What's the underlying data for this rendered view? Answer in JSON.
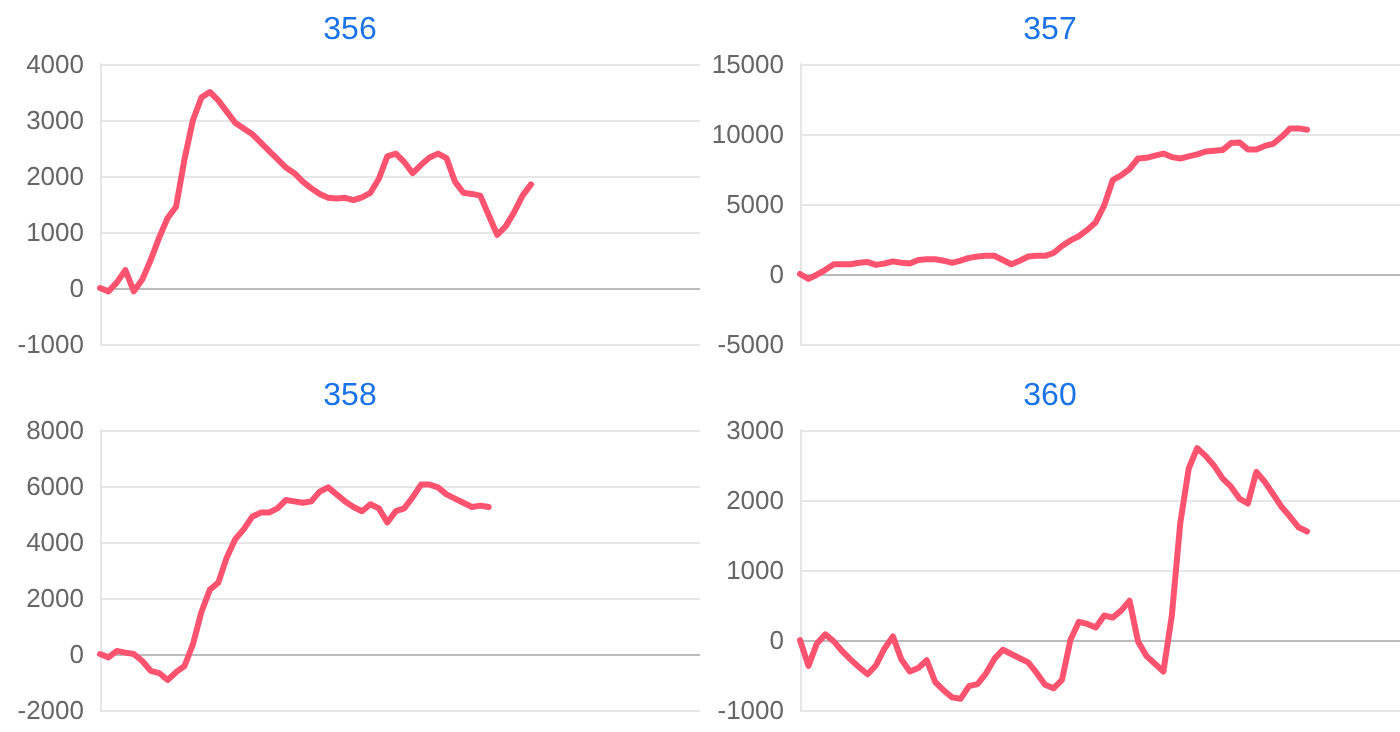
{
  "chart_data": [
    {
      "type": "line",
      "title": "356",
      "categories": [
        null,
        null,
        null,
        null,
        null,
        null,
        null,
        null,
        null,
        null,
        null,
        null,
        null,
        null,
        null,
        null,
        null,
        null,
        null,
        null,
        null,
        null,
        null,
        null,
        null,
        null,
        null,
        null,
        null,
        null,
        null,
        null,
        null,
        null,
        null,
        null,
        null,
        null,
        null,
        null,
        null,
        null,
        null,
        null,
        null,
        null,
        null,
        null,
        null,
        null,
        null,
        null,
        null,
        null,
        null,
        null,
        null,
        null,
        null,
        null,
        null,
        null,
        null,
        null,
        null,
        null,
        null,
        null,
        null,
        null,
        null,
        null
      ],
      "values": [
        0,
        -60,
        100,
        320,
        -60,
        150,
        500,
        900,
        1250,
        1450,
        2300,
        3000,
        3400,
        3500,
        3350,
        3150,
        2950,
        2850,
        2750,
        2600,
        2450,
        2300,
        2150,
        2050,
        1900,
        1780,
        1680,
        1610,
        1600,
        1610,
        1570,
        1620,
        1700,
        1950,
        2350,
        2400,
        2250,
        2050,
        2200,
        2330,
        2400,
        2320,
        1900,
        1700,
        1680,
        1650,
        1300,
        950,
        1100,
        1350,
        1650,
        1850,
        null,
        null,
        null,
        null,
        null,
        null,
        null,
        null,
        null,
        null,
        null,
        null,
        null,
        null,
        null,
        null,
        null,
        null,
        null,
        null
      ],
      "color": "#ff5370",
      "ylim": [
        -1000,
        4000
      ],
      "yticks": [
        -1000,
        0,
        1000,
        2000,
        3000,
        4000
      ],
      "grid": "y",
      "tick_labels": "y"
    },
    {
      "type": "line",
      "title": "357",
      "categories": [
        null,
        null,
        null,
        null,
        null,
        null,
        null,
        null,
        null,
        null,
        null,
        null,
        null,
        null,
        null,
        null,
        null,
        null,
        null,
        null,
        null,
        null,
        null,
        null,
        null,
        null,
        null,
        null,
        null,
        null,
        null,
        null,
        null,
        null,
        null,
        null,
        null,
        null,
        null,
        null,
        null,
        null,
        null,
        null,
        null,
        null,
        null,
        null,
        null,
        null,
        null,
        null,
        null,
        null,
        null,
        null,
        null,
        null,
        null,
        null,
        null,
        null,
        null,
        null,
        null,
        null,
        null,
        null,
        null,
        null,
        null,
        null
      ],
      "values": [
        0,
        -350,
        -50,
        300,
        700,
        700,
        700,
        800,
        850,
        650,
        750,
        900,
        800,
        750,
        1000,
        1050,
        1050,
        950,
        800,
        950,
        1150,
        1250,
        1300,
        1300,
        1000,
        700,
        950,
        1250,
        1300,
        1300,
        1500,
        2000,
        2400,
        2700,
        3150,
        3700,
        4900,
        6700,
        7050,
        7500,
        8250,
        8300,
        8450,
        8600,
        8350,
        8250,
        8400,
        8550,
        8750,
        8800,
        8850,
        9350,
        9400,
        8900,
        8900,
        9150,
        9300,
        9800,
        10400,
        10400,
        10300,
        null,
        null,
        null,
        null,
        null,
        null,
        null,
        null,
        null,
        null,
        null
      ],
      "color": "#ff5370",
      "ylim": [
        -5000,
        15000
      ],
      "yticks": [
        -5000,
        0,
        5000,
        10000,
        15000
      ],
      "grid": "y",
      "tick_labels": "y"
    },
    {
      "type": "line",
      "title": "358",
      "categories": [
        null,
        null,
        null,
        null,
        null,
        null,
        null,
        null,
        null,
        null,
        null,
        null,
        null,
        null,
        null,
        null,
        null,
        null,
        null,
        null,
        null,
        null,
        null,
        null,
        null,
        null,
        null,
        null,
        null,
        null,
        null,
        null,
        null,
        null,
        null,
        null,
        null,
        null,
        null,
        null,
        null,
        null,
        null,
        null,
        null,
        null,
        null,
        null,
        null,
        null,
        null,
        null,
        null,
        null,
        null,
        null,
        null,
        null,
        null,
        null,
        null,
        null,
        null,
        null,
        null,
        null,
        null,
        null,
        null,
        null,
        null,
        null
      ],
      "values": [
        0,
        -120,
        110,
        50,
        0,
        -250,
        -600,
        -680,
        -930,
        -650,
        -430,
        350,
        1500,
        2300,
        2550,
        3450,
        4100,
        4450,
        4900,
        5050,
        5050,
        5200,
        5500,
        5450,
        5400,
        5450,
        5800,
        5950,
        5700,
        5450,
        5250,
        5100,
        5350,
        5200,
        4700,
        5100,
        5200,
        5600,
        6050,
        6050,
        5950,
        5700,
        5550,
        5400,
        5250,
        5300,
        5250,
        null,
        null,
        null,
        null,
        null,
        null,
        null,
        null,
        null,
        null,
        null,
        null,
        null,
        null,
        null,
        null,
        null,
        null,
        null,
        null,
        null,
        null,
        null,
        null,
        null
      ],
      "color": "#ff5370",
      "ylim": [
        -2000,
        8000
      ],
      "yticks": [
        -2000,
        0,
        2000,
        4000,
        6000,
        8000
      ],
      "grid": "y",
      "tick_labels": "y"
    },
    {
      "type": "line",
      "title": "360",
      "categories": [
        null,
        null,
        null,
        null,
        null,
        null,
        null,
        null,
        null,
        null,
        null,
        null,
        null,
        null,
        null,
        null,
        null,
        null,
        null,
        null,
        null,
        null,
        null,
        null,
        null,
        null,
        null,
        null,
        null,
        null,
        null,
        null,
        null,
        null,
        null,
        null,
        null,
        null,
        null,
        null,
        null,
        null,
        null,
        null,
        null,
        null,
        null,
        null,
        null,
        null,
        null,
        null,
        null,
        null,
        null,
        null,
        null,
        null,
        null,
        null,
        null,
        null,
        null,
        null,
        null,
        null,
        null,
        null,
        null,
        null,
        null,
        null
      ],
      "values": [
        0,
        -370,
        -50,
        80,
        -20,
        -160,
        -280,
        -390,
        -490,
        -360,
        -120,
        50,
        -280,
        -450,
        -400,
        -290,
        -600,
        -720,
        -820,
        -840,
        -660,
        -630,
        -480,
        -270,
        -140,
        -200,
        -260,
        -320,
        -470,
        -640,
        -690,
        -570,
        0,
        260,
        230,
        180,
        350,
        320,
        420,
        560,
        -20,
        -230,
        -340,
        -450,
        350,
        1670,
        2450,
        2740,
        2630,
        2490,
        2310,
        2190,
        2020,
        1950,
        2400,
        2260,
        2080,
        1900,
        1760,
        1610,
        1550,
        null,
        null,
        null,
        null,
        null,
        null,
        null,
        null,
        null,
        null,
        null
      ],
      "color": "#ff5370",
      "ylim": [
        -1000,
        3000
      ],
      "yticks": [
        -1000,
        0,
        1000,
        2000,
        3000
      ],
      "grid": "y",
      "tick_labels": "y"
    }
  ]
}
